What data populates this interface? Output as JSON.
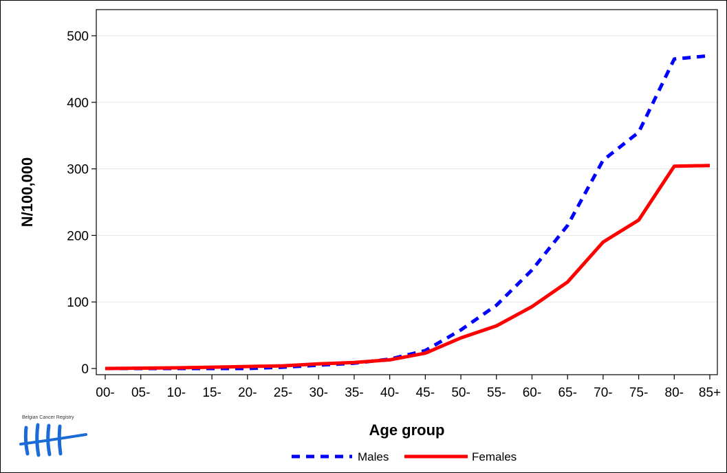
{
  "chart_data": {
    "type": "line",
    "categories": [
      "00-",
      "05-",
      "10-",
      "15-",
      "20-",
      "25-",
      "30-",
      "35-",
      "40-",
      "45-",
      "50-",
      "55-",
      "60-",
      "65-",
      "70-",
      "75-",
      "80-",
      "85+"
    ],
    "series": [
      {
        "name": "Males",
        "color": "#0000ff",
        "style": "dashed",
        "values": [
          0,
          0,
          0,
          0,
          0,
          2,
          5,
          8,
          14,
          27,
          58,
          95,
          148,
          215,
          313,
          355,
          465,
          470
        ]
      },
      {
        "name": "Females",
        "color": "#ff0000",
        "style": "solid",
        "values": [
          0,
          0.5,
          1,
          2,
          3,
          4,
          7,
          9,
          13,
          23,
          46,
          64,
          93,
          130,
          190,
          223,
          304,
          305
        ]
      }
    ],
    "xlabel": "Age group",
    "ylabel": "N/100,000",
    "ylim": [
      0,
      500
    ],
    "yticks": [
      0,
      100,
      200,
      300,
      400,
      500
    ],
    "grid": "horizontal",
    "legend_position": "bottom"
  },
  "logo": {
    "text": "Belgian Cancer Registry",
    "color": "#1a6ad8",
    "icon": "tally-marks-logo"
  }
}
